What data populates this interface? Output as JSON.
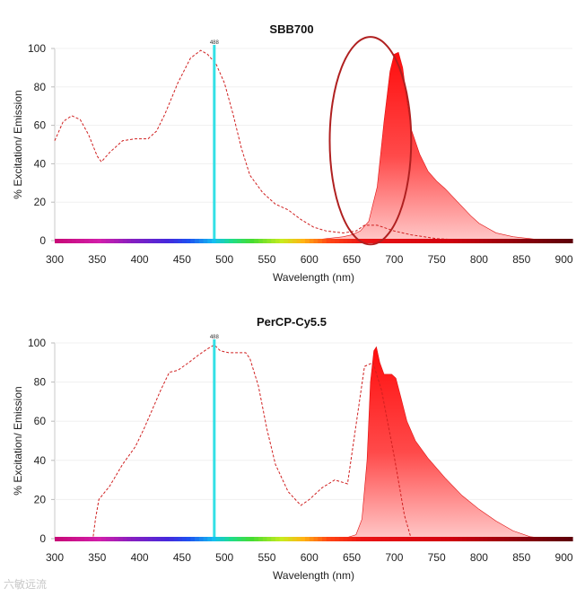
{
  "chart_data": [
    {
      "type": "area",
      "title": "SBB700",
      "xlabel": "Wavelength (nm)",
      "ylabel": "% Excitation/ Emission",
      "xlim": [
        300,
        910
      ],
      "ylim": [
        0,
        100
      ],
      "xticks": [
        300,
        350,
        400,
        450,
        500,
        550,
        600,
        650,
        700,
        750,
        800,
        850,
        900
      ],
      "yticks": [
        0,
        20,
        40,
        60,
        80,
        100
      ],
      "laser_line": {
        "wavelength": 488,
        "label": "488",
        "color": "#33e0e6"
      },
      "excitation": {
        "style": "dashed",
        "color": "#d02020",
        "x": [
          300,
          310,
          320,
          330,
          340,
          350,
          355,
          365,
          380,
          395,
          410,
          420,
          430,
          445,
          460,
          472,
          480,
          490,
          500,
          510,
          520,
          530,
          545,
          560,
          575,
          590,
          605,
          620,
          640,
          655,
          665,
          680,
          700,
          720,
          750,
          800,
          850,
          910
        ],
        "y": [
          52,
          62,
          65,
          63,
          55,
          44,
          41,
          46,
          52,
          53,
          53,
          57,
          66,
          82,
          95,
          99,
          97,
          92,
          82,
          66,
          48,
          34,
          25,
          19,
          16,
          11,
          7,
          5,
          4,
          5,
          8,
          8,
          5,
          3,
          1,
          0,
          0,
          0
        ]
      },
      "emission": {
        "style": "filled",
        "color": "#ff1a1a",
        "x": [
          600,
          620,
          640,
          650,
          660,
          670,
          680,
          688,
          695,
          700,
          705,
          710,
          715,
          720,
          730,
          740,
          750,
          760,
          775,
          790,
          800,
          820,
          840,
          860,
          880,
          910
        ],
        "y": [
          0,
          1,
          2,
          3,
          5,
          10,
          28,
          62,
          88,
          97,
          98,
          90,
          73,
          58,
          45,
          36,
          31,
          27,
          20,
          13,
          9,
          4,
          2,
          1,
          0,
          0
        ]
      },
      "annotation": {
        "shape": "ellipse",
        "color": "#b02020",
        "center_x": 672,
        "span_x": [
          624,
          720
        ],
        "span_y": [
          -2,
          106
        ]
      }
    },
    {
      "type": "area",
      "title": "PerCP-Cy5.5",
      "xlabel": "Wavelength (nm)",
      "ylabel": "% Excitation/ Emission",
      "xlim": [
        300,
        910
      ],
      "ylim": [
        0,
        100
      ],
      "xticks": [
        300,
        350,
        400,
        450,
        500,
        550,
        600,
        650,
        700,
        750,
        800,
        850,
        900
      ],
      "yticks": [
        0,
        20,
        40,
        60,
        80,
        100
      ],
      "laser_line": {
        "wavelength": 488,
        "label": "488",
        "color": "#33e0e6"
      },
      "excitation": {
        "style": "dashed",
        "color": "#d02020",
        "x": [
          300,
          330,
          345,
          348,
          352,
          365,
          380,
          395,
          405,
          415,
          425,
          435,
          445,
          458,
          470,
          480,
          488,
          495,
          505,
          515,
          525,
          530,
          540,
          550,
          560,
          575,
          590,
          600,
          615,
          630,
          645,
          655,
          665,
          675,
          685,
          700,
          712,
          720,
          740,
          800,
          910
        ],
        "y": [
          0,
          0,
          0,
          10,
          20,
          27,
          38,
          47,
          56,
          66,
          76,
          85,
          86,
          90,
          94,
          97,
          99,
          96,
          95,
          95,
          95,
          92,
          78,
          56,
          38,
          24,
          17,
          20,
          26,
          30,
          28,
          58,
          88,
          90,
          76,
          42,
          12,
          0,
          0,
          0,
          0
        ]
      },
      "emission": {
        "style": "filled",
        "color": "#ff1a1a",
        "x": [
          640,
          655,
          662,
          668,
          672,
          676,
          679,
          683,
          688,
          692,
          697,
          702,
          708,
          715,
          725,
          740,
          760,
          780,
          800,
          820,
          840,
          860,
          880,
          910
        ],
        "y": [
          0,
          2,
          10,
          40,
          80,
          96,
          98,
          90,
          84,
          84,
          84,
          82,
          72,
          60,
          50,
          41,
          31,
          22,
          15,
          9,
          4,
          1,
          0,
          0
        ]
      }
    }
  ],
  "watermark": "六敏远流"
}
